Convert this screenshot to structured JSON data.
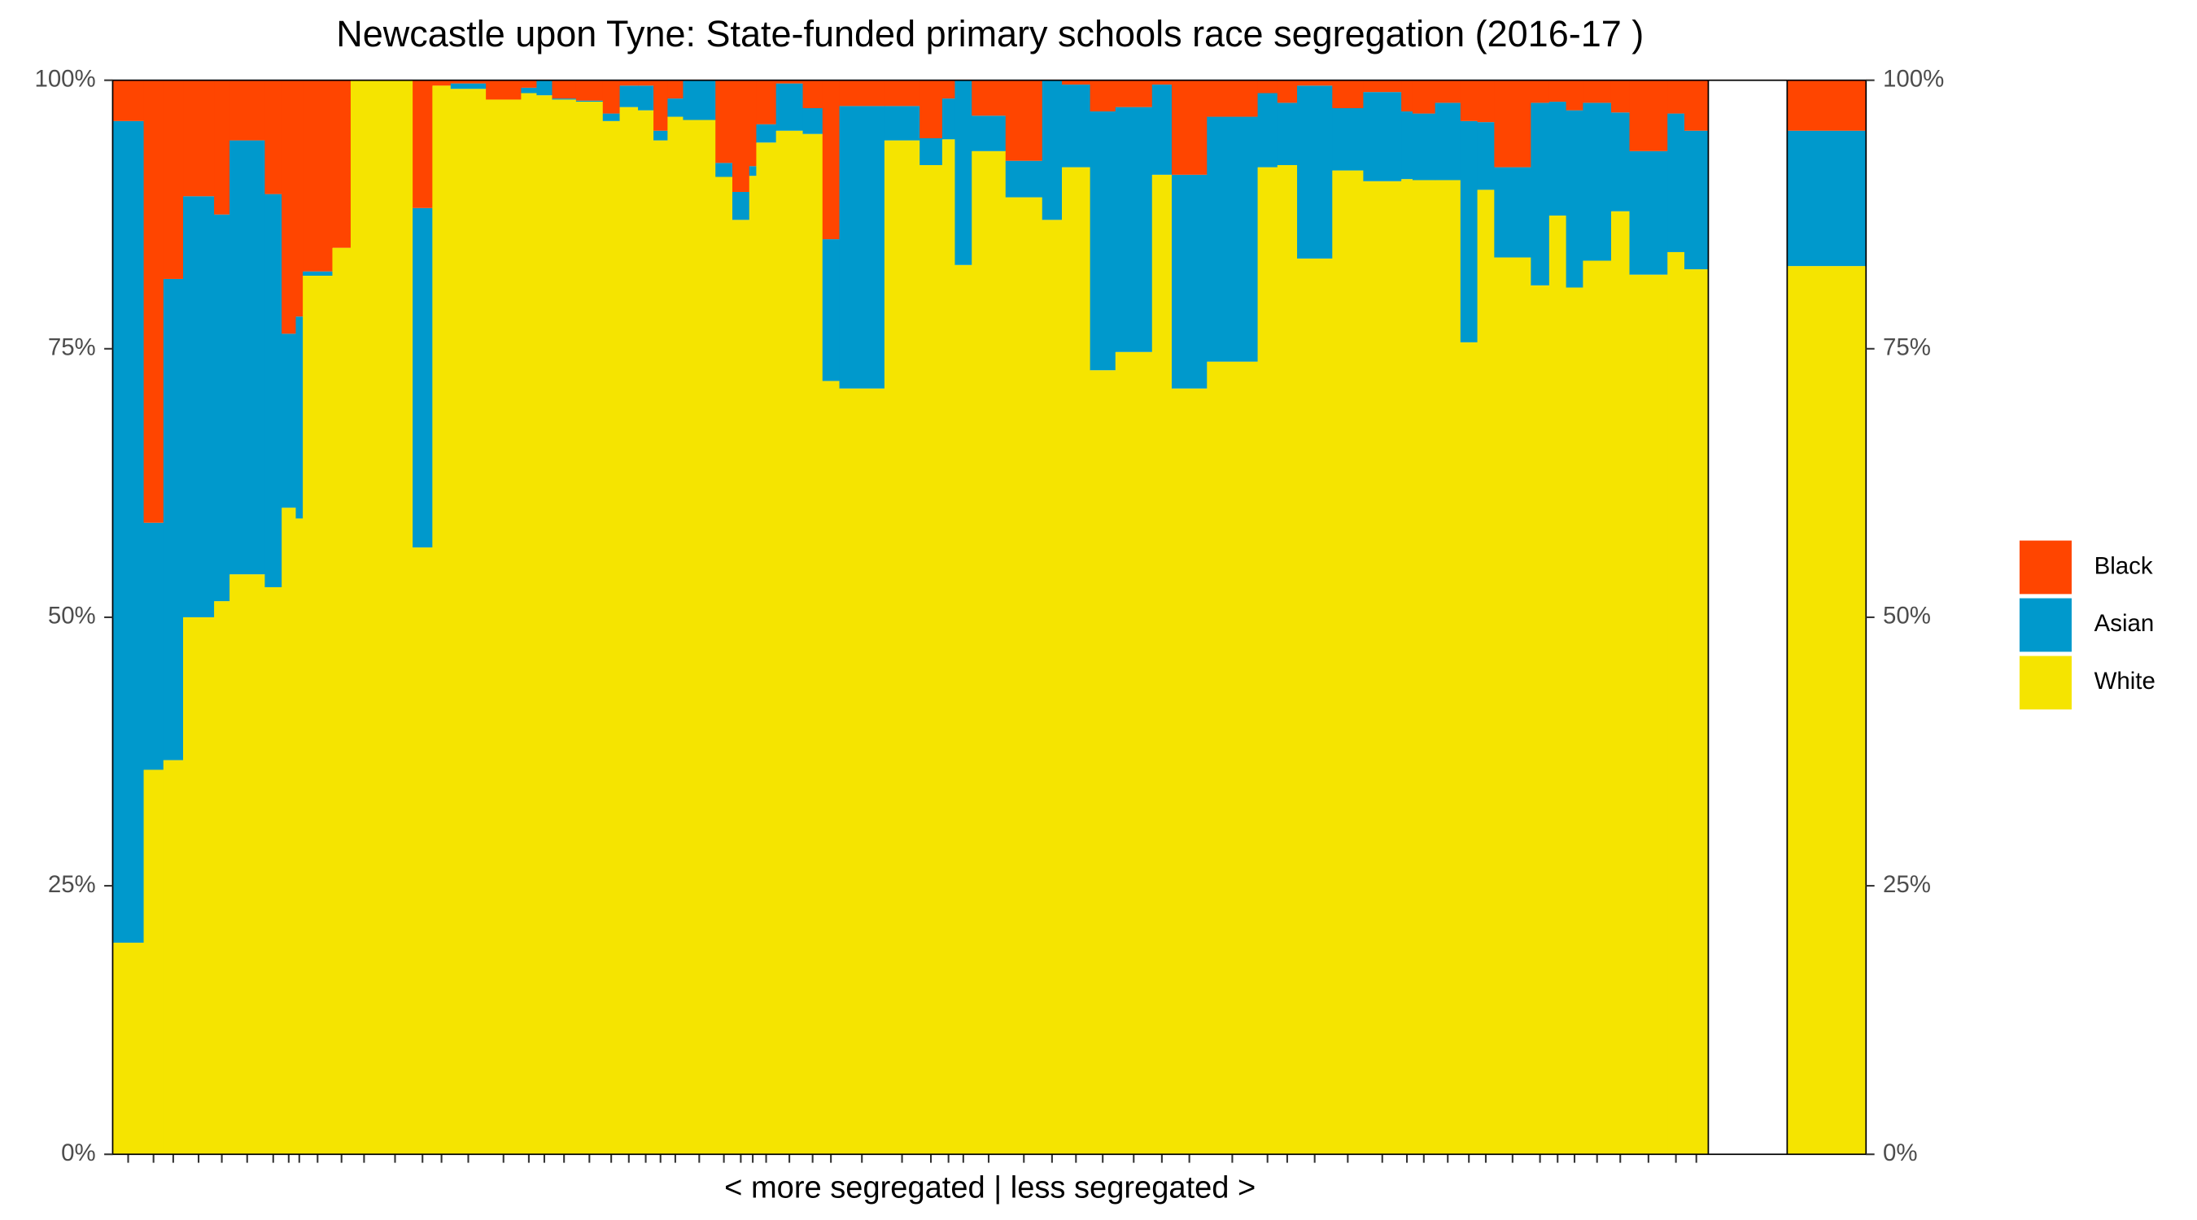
{
  "chart_data": {
    "type": "mekko",
    "title": "Newcastle upon Tyne: State-funded primary schools race segregation (2016-17 )",
    "x_label": "< more segregated | less segregated >",
    "ylim": [
      0,
      100
    ],
    "yticks": [
      {
        "value": 0,
        "label": "0%"
      },
      {
        "value": 25,
        "label": "25%"
      },
      {
        "value": 50,
        "label": "50%"
      },
      {
        "value": 75,
        "label": "75%"
      },
      {
        "value": 100,
        "label": "100%"
      }
    ],
    "widths": [
      22,
      14,
      14,
      22,
      11,
      25,
      12,
      10,
      5,
      21,
      13,
      19,
      25,
      14,
      13,
      25,
      25,
      11,
      11,
      17,
      19,
      12,
      13,
      11,
      10,
      11,
      23,
      12,
      12,
      5,
      14,
      19,
      14,
      12,
      32,
      25,
      16,
      9,
      12,
      24,
      26,
      14,
      20,
      18,
      26,
      14,
      25,
      36,
      14,
      14,
      25,
      22,
      27,
      8,
      16,
      18,
      12,
      12,
      26,
      13,
      12,
      12,
      20,
      13,
      27,
      12,
      17
    ],
    "series": [
      {
        "name": "White",
        "color": "#F5E400",
        "values": [
          19.7,
          35.8,
          36.7,
          50.0,
          51.5,
          54.0,
          52.8,
          60.2,
          59.2,
          81.8,
          84.4,
          100,
          100,
          56.5,
          99.5,
          99.2,
          98.2,
          98.8,
          98.6,
          98.2,
          98.0,
          96.2,
          97.5,
          97.2,
          94.4,
          96.6,
          96.3,
          91.0,
          87.0,
          91.1,
          94.2,
          95.3,
          95.0,
          72.0,
          71.3,
          94.4,
          92.1,
          94.5,
          82.8,
          93.4,
          89.1,
          87.0,
          91.9,
          73.0,
          74.7,
          91.2,
          71.3,
          73.8,
          91.9,
          92.1,
          83.4,
          91.6,
          90.6,
          90.8,
          90.7,
          90.7,
          75.6,
          89.8,
          83.5,
          80.9,
          87.4,
          80.7,
          83.2,
          87.8,
          81.9,
          84.0,
          82.4
        ],
        "overall": 82.7
      },
      {
        "name": "Asian",
        "color": "#0099CC",
        "values": [
          76.5,
          23.0,
          44.8,
          39.2,
          36.0,
          40.4,
          36.6,
          16.2,
          18.8,
          0.4,
          0,
          0,
          0,
          31.6,
          0,
          0.5,
          0,
          0.5,
          1.4,
          0.1,
          0.1,
          0.7,
          2.0,
          2.3,
          0.9,
          1.7,
          3.7,
          1.3,
          2.6,
          0.9,
          1.7,
          4.4,
          2.4,
          13.2,
          26.3,
          3.2,
          2.5,
          3.8,
          17.2,
          3.3,
          3.4,
          13.0,
          7.7,
          24.1,
          22.8,
          8.4,
          19.9,
          22.8,
          6.9,
          5.8,
          16.1,
          5.8,
          8.3,
          6.3,
          6.2,
          7.2,
          20.6,
          6.3,
          8.4,
          17.0,
          10.6,
          16.5,
          14.7,
          9.2,
          11.5,
          12.9,
          12.9
        ],
        "overall": 12.6
      },
      {
        "name": "Black",
        "color": "#FF4500",
        "values": [
          3.8,
          41.2,
          18.5,
          10.8,
          12.5,
          5.6,
          10.6,
          23.6,
          22.0,
          17.8,
          15.6,
          0,
          0,
          11.9,
          0.5,
          0.3,
          1.8,
          0.7,
          0,
          1.7,
          1.9,
          3.1,
          0.5,
          0.5,
          4.7,
          1.7,
          0,
          7.7,
          10.4,
          8.0,
          4.1,
          0.3,
          2.6,
          14.8,
          2.4,
          2.4,
          5.4,
          1.7,
          0,
          3.3,
          7.5,
          0,
          0.4,
          2.9,
          2.5,
          0.4,
          8.8,
          3.4,
          1.2,
          2.1,
          0.5,
          2.6,
          1.1,
          2.9,
          3.1,
          2.1,
          3.8,
          3.9,
          8.1,
          2.1,
          2.0,
          2.8,
          2.1,
          3.0,
          6.6,
          3.1,
          4.7
        ],
        "overall": 4.7
      }
    ]
  }
}
